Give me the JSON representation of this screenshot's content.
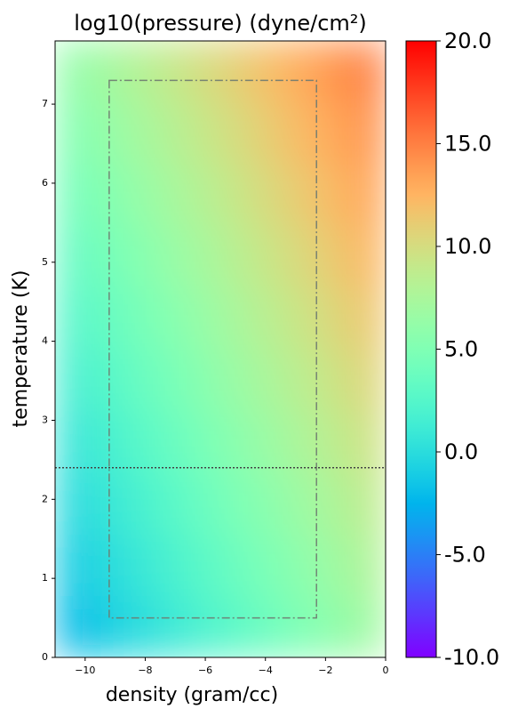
{
  "chart_data": {
    "type": "heatmap",
    "title": "log10(pressure) (dyne/cm²)",
    "xlabel": "density (gram/cc)",
    "ylabel": "temperature (K)",
    "colormap": "rainbow",
    "xlim": [
      -11,
      0
    ],
    "ylim": [
      0,
      7.8
    ],
    "xticks": [
      {
        "value": -10,
        "label": "−10"
      },
      {
        "value": -8,
        "label": "−8"
      },
      {
        "value": -6,
        "label": "−6"
      },
      {
        "value": -4,
        "label": "−4"
      },
      {
        "value": -2,
        "label": "−2"
      },
      0
    ],
    "yticks": [
      0,
      1,
      2,
      3,
      4,
      5,
      6,
      7
    ],
    "xbins": [
      -11,
      -10,
      -9,
      -8,
      -7,
      -6,
      -5,
      -4,
      -3,
      -2,
      -1,
      0
    ],
    "ybins": [
      0,
      0.78,
      1.56,
      2.34,
      3.12,
      3.9,
      4.68,
      5.46,
      6.24,
      7.02,
      7.8
    ],
    "values": [
      [
        -2.1,
        -1.2,
        -0.3,
        0.6,
        1.6,
        2.5,
        3.4,
        4.3,
        5.2,
        6.1,
        7.0
      ],
      [
        -1.2,
        -0.3,
        0.6,
        1.5,
        2.5,
        3.4,
        4.3,
        5.2,
        6.1,
        7.0,
        7.9
      ],
      [
        -0.3,
        0.6,
        1.5,
        2.4,
        3.3,
        4.3,
        5.2,
        6.1,
        7.0,
        7.9,
        8.8
      ],
      [
        0.6,
        1.5,
        2.4,
        3.3,
        4.2,
        5.2,
        6.1,
        7.0,
        7.9,
        8.8,
        9.7
      ],
      [
        1.5,
        2.4,
        3.3,
        4.2,
        5.1,
        6.1,
        7.0,
        7.9,
        8.8,
        9.7,
        10.6
      ],
      [
        2.4,
        3.3,
        4.2,
        5.1,
        6.0,
        6.9,
        7.9,
        8.8,
        9.7,
        10.6,
        11.5
      ],
      [
        3.3,
        4.2,
        5.1,
        6.0,
        6.9,
        7.8,
        8.8,
        9.7,
        10.6,
        11.5,
        12.4
      ],
      [
        4.2,
        5.1,
        6.0,
        6.9,
        7.8,
        8.7,
        9.7,
        10.6,
        11.5,
        12.4,
        13.3
      ],
      [
        5.1,
        6.0,
        6.9,
        7.8,
        8.7,
        9.6,
        10.5,
        11.5,
        12.4,
        13.3,
        14.2
      ],
      [
        6.0,
        6.9,
        7.8,
        8.7,
        9.6,
        10.5,
        11.4,
        12.3,
        13.3,
        14.2,
        15.1
      ]
    ],
    "box": {
      "x": [
        -9.2,
        -2.3
      ],
      "y": [
        0.5,
        7.3
      ]
    },
    "hline": 2.4,
    "clim": [
      -10,
      20
    ],
    "cticks": [
      {
        "value": -10,
        "label": "-10.0"
      },
      {
        "value": -5,
        "label": "-5.0"
      },
      {
        "value": 0,
        "label": "0.0"
      },
      {
        "value": 5,
        "label": "5.0"
      },
      {
        "value": 10,
        "label": "10.0"
      },
      {
        "value": 15,
        "label": "15.0"
      },
      {
        "value": 20,
        "label": "20.0"
      }
    ]
  }
}
